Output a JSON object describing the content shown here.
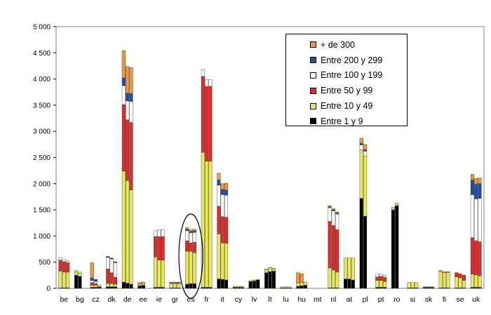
{
  "chart_data": {
    "type": "bar",
    "stacked": true,
    "title": "",
    "xlabel": "",
    "ylabel": "",
    "ylim": [
      0,
      5000
    ],
    "yticks": [
      0,
      500,
      1000,
      1500,
      2000,
      2500,
      3000,
      3500,
      4000,
      4500,
      5000
    ],
    "ytick_labels": [
      "0",
      "500",
      "1 000",
      "1 500",
      "2 000",
      "2 500",
      "3 000",
      "3 500",
      "4 000",
      "4 500",
      "5 000"
    ],
    "grid": false,
    "legend_position": "top-right",
    "categories": [
      "be",
      "bg",
      "cz",
      "dk",
      "de",
      "ee",
      "ie",
      "gr",
      "es",
      "fr",
      "it",
      "cy",
      "lv",
      "lt",
      "lu",
      "hu",
      "mt",
      "nl",
      "at",
      "pl",
      "pt",
      "ro",
      "si",
      "sk",
      "fi",
      "se",
      "uk"
    ],
    "highlighted_category": "es",
    "bars_per_category": 3,
    "series": [
      {
        "name": "Entre 1 y 9",
        "color": "#000000",
        "values": [
          [
            10,
            10,
            10
          ],
          [
            250,
            230,
            0
          ],
          [
            20,
            20,
            30
          ],
          [
            30,
            30,
            30
          ],
          [
            120,
            100,
            80
          ],
          [
            50,
            60,
            0
          ],
          [
            20,
            20,
            20
          ],
          [
            10,
            10,
            10
          ],
          [
            80,
            90,
            90
          ],
          [
            20,
            20,
            20
          ],
          [
            180,
            170,
            160
          ],
          [
            20,
            20,
            20
          ],
          [
            130,
            140,
            160
          ],
          [
            300,
            320,
            330
          ],
          [
            10,
            10,
            10
          ],
          [
            40,
            50,
            60
          ],
          [
            0,
            0,
            0
          ],
          [
            10,
            10,
            10
          ],
          [
            180,
            180,
            160
          ],
          [
            1720,
            1380,
            0
          ],
          [
            20,
            20,
            20
          ],
          [
            1500,
            1580,
            0
          ],
          [
            10,
            10,
            10
          ],
          [
            20,
            20,
            20
          ],
          [
            10,
            10,
            10
          ],
          [
            10,
            10,
            10
          ],
          [
            20,
            20,
            20
          ]
        ]
      },
      {
        "name": "Entre 10 y 49",
        "color": "#e8e85a",
        "values": [
          [
            320,
            300,
            300
          ],
          [
            70,
            60,
            0
          ],
          [
            40,
            40,
            30
          ],
          [
            60,
            60,
            50
          ],
          [
            2120,
            1960,
            1800
          ],
          [
            30,
            30,
            0
          ],
          [
            580,
            520,
            520
          ],
          [
            80,
            80,
            80
          ],
          [
            630,
            620,
            590
          ],
          [
            2580,
            2410,
            2410
          ],
          [
            860,
            700,
            700
          ],
          [
            20,
            20,
            20
          ],
          [
            20,
            20,
            10
          ],
          [
            60,
            70,
            40
          ],
          [
            20,
            20,
            20
          ],
          [
            60,
            60,
            60
          ],
          [
            0,
            0,
            0
          ],
          [
            380,
            340,
            300
          ],
          [
            400,
            400,
            420
          ],
          [
            930,
            1150,
            0
          ],
          [
            130,
            130,
            110
          ],
          [
            30,
            30,
            0
          ],
          [
            100,
            100,
            100
          ],
          [
            10,
            10,
            10
          ],
          [
            310,
            290,
            290
          ],
          [
            210,
            190,
            140
          ],
          [
            250,
            240,
            220
          ]
        ]
      },
      {
        "name": "Entre 50 y 99",
        "color": "#dc2d2d",
        "values": [
          [
            210,
            200,
            180
          ],
          [
            0,
            0,
            0
          ],
          [
            50,
            30,
            0
          ],
          [
            280,
            210,
            130
          ],
          [
            1270,
            1160,
            1290
          ],
          [
            0,
            0,
            0
          ],
          [
            390,
            450,
            450
          ],
          [
            20,
            20,
            20
          ],
          [
            200,
            160,
            200
          ],
          [
            1450,
            1430,
            1430
          ],
          [
            530,
            500,
            500
          ],
          [
            0,
            0,
            0
          ],
          [
            0,
            0,
            0
          ],
          [
            0,
            0,
            0
          ],
          [
            0,
            0,
            0
          ],
          [
            0,
            0,
            0
          ],
          [
            0,
            0,
            0
          ],
          [
            890,
            850,
            810
          ],
          [
            0,
            0,
            0
          ],
          [
            0,
            0,
            0
          ],
          [
            70,
            80,
            80
          ],
          [
            0,
            0,
            0
          ],
          [
            0,
            0,
            0
          ],
          [
            0,
            0,
            0
          ],
          [
            0,
            0,
            0
          ],
          [
            80,
            80,
            100
          ],
          [
            700,
            650,
            650
          ]
        ]
      },
      {
        "name": "Entre 100 y 199",
        "color": "#ffffff",
        "values": [
          [
            50,
            40,
            40
          ],
          [
            20,
            20,
            0
          ],
          [
            40,
            40,
            0
          ],
          [
            220,
            260,
            280
          ],
          [
            360,
            360,
            400
          ],
          [
            0,
            0,
            0
          ],
          [
            120,
            130,
            130
          ],
          [
            10,
            10,
            10
          ],
          [
            190,
            190,
            190
          ],
          [
            130,
            130,
            130
          ],
          [
            400,
            420,
            420
          ],
          [
            0,
            0,
            0
          ],
          [
            0,
            0,
            0
          ],
          [
            10,
            10,
            10
          ],
          [
            0,
            0,
            0
          ],
          [
            0,
            0,
            0
          ],
          [
            0,
            0,
            0
          ],
          [
            260,
            280,
            300
          ],
          [
            0,
            0,
            0
          ],
          [
            90,
            90,
            0
          ],
          [
            50,
            40,
            40
          ],
          [
            20,
            20,
            0
          ],
          [
            0,
            0,
            0
          ],
          [
            0,
            0,
            0
          ],
          [
            0,
            0,
            0
          ],
          [
            0,
            0,
            0
          ],
          [
            820,
            800,
            830
          ]
        ]
      },
      {
        "name": "Entre 200 y 299",
        "color": "#1f4fa0",
        "values": [
          [
            0,
            0,
            0
          ],
          [
            0,
            0,
            0
          ],
          [
            50,
            40,
            0
          ],
          [
            20,
            20,
            20
          ],
          [
            150,
            150,
            150
          ],
          [
            0,
            0,
            0
          ],
          [
            0,
            0,
            0
          ],
          [
            0,
            0,
            0
          ],
          [
            30,
            30,
            30
          ],
          [
            0,
            0,
            0
          ],
          [
            100,
            100,
            100
          ],
          [
            0,
            0,
            0
          ],
          [
            0,
            0,
            0
          ],
          [
            0,
            0,
            0
          ],
          [
            0,
            0,
            0
          ],
          [
            0,
            0,
            0
          ],
          [
            0,
            0,
            0
          ],
          [
            20,
            20,
            20
          ],
          [
            0,
            0,
            0
          ],
          [
            30,
            30,
            0
          ],
          [
            0,
            0,
            0
          ],
          [
            0,
            0,
            0
          ],
          [
            0,
            0,
            0
          ],
          [
            0,
            0,
            0
          ],
          [
            0,
            0,
            0
          ],
          [
            0,
            0,
            0
          ],
          [
            280,
            280,
            280
          ]
        ]
      },
      {
        "name": "+ de 300",
        "color": "#f0963c",
        "values": [
          [
            0,
            0,
            0
          ],
          [
            0,
            0,
            0
          ],
          [
            290,
            0,
            0
          ],
          [
            0,
            0,
            0
          ],
          [
            520,
            510,
            500
          ],
          [
            30,
            30,
            0
          ],
          [
            0,
            0,
            0
          ],
          [
            0,
            0,
            0
          ],
          [
            30,
            30,
            30
          ],
          [
            0,
            0,
            0
          ],
          [
            130,
            110,
            130
          ],
          [
            0,
            0,
            0
          ],
          [
            0,
            0,
            0
          ],
          [
            0,
            0,
            0
          ],
          [
            0,
            0,
            0
          ],
          [
            200,
            170,
            0
          ],
          [
            0,
            0,
            0
          ],
          [
            20,
            20,
            20
          ],
          [
            0,
            0,
            0
          ],
          [
            100,
            100,
            0
          ],
          [
            0,
            0,
            0
          ],
          [
            0,
            0,
            0
          ],
          [
            0,
            0,
            0
          ],
          [
            0,
            0,
            0
          ],
          [
            20,
            20,
            20
          ],
          [
            0,
            0,
            0
          ],
          [
            110,
            110,
            110
          ]
        ]
      }
    ]
  }
}
